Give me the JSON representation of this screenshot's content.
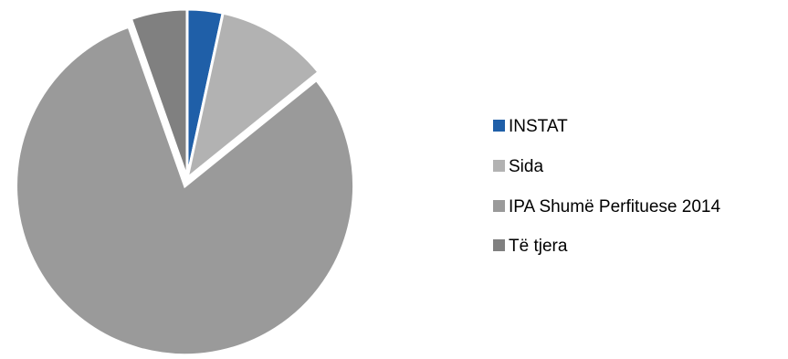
{
  "chart_data": {
    "type": "pie",
    "title": "",
    "legend_position": "right",
    "start_angle_deg": 0,
    "direction": "clockwise",
    "slices": [
      {
        "label": "INSTAT",
        "value": 3.4,
        "color": "#1F5FA8",
        "exploded": false
      },
      {
        "label": "Sida",
        "value": 10.8,
        "color": "#B2B2B2",
        "exploded": false
      },
      {
        "label": "IPA Shumë Perfituese 2014",
        "value": 80.4,
        "color": "#9A9A9A",
        "exploded": true
      },
      {
        "label": "Të tjera",
        "value": 5.4,
        "color": "#808080",
        "exploded": false
      }
    ]
  }
}
